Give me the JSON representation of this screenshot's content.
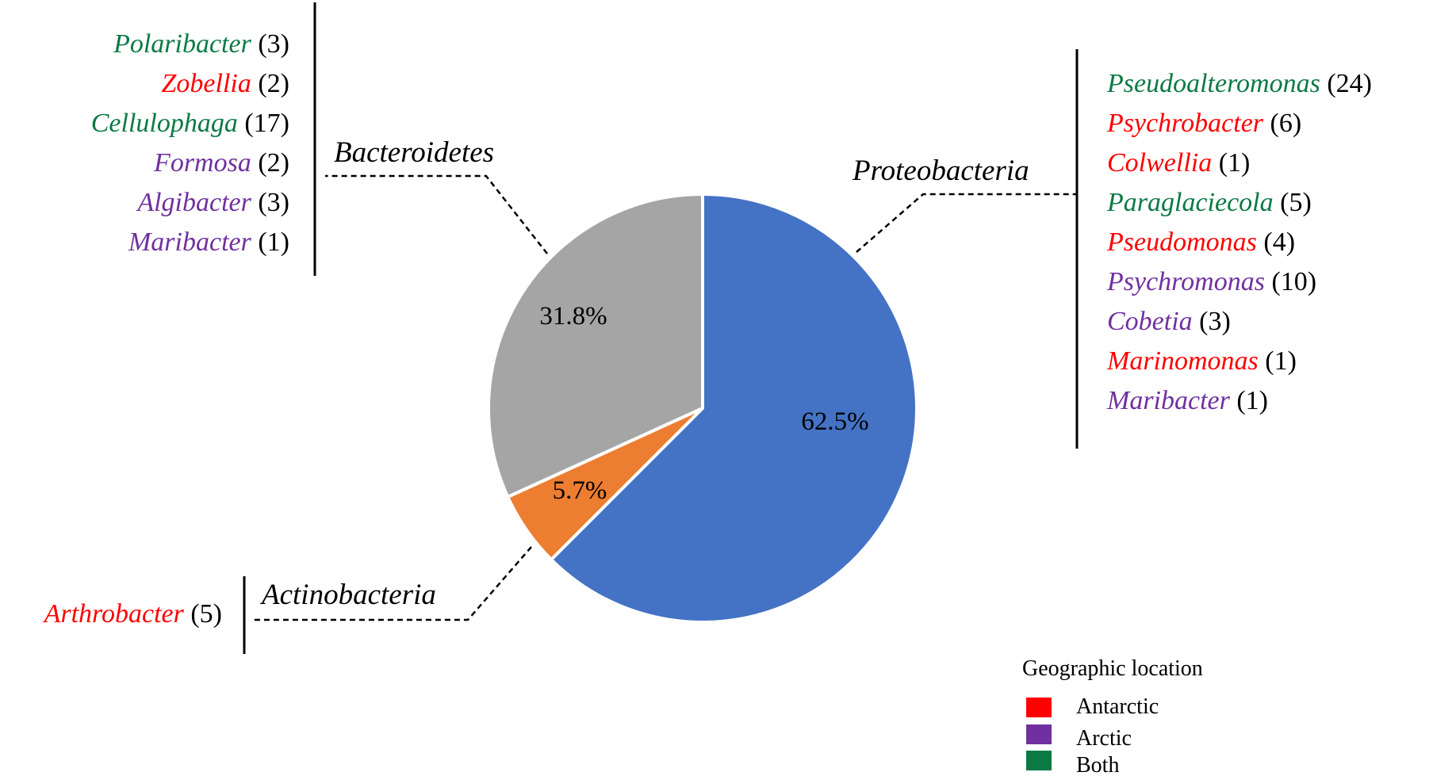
{
  "colors": {
    "antarctic": "#ff0000",
    "arctic": "#7030a0",
    "both": "#0b7a45",
    "proteobacteria_slice": "#4472c4",
    "actinobacteria_slice": "#ed7d31",
    "bacteroidetes_slice": "#a5a5a5"
  },
  "chart_data": {
    "type": "pie",
    "start_angle_deg": 0,
    "direction": "clockwise",
    "slices": [
      {
        "label": "Proteobacteria",
        "value": 62.5,
        "value_label": "62.5%",
        "color": "#4472c4"
      },
      {
        "label": "Actinobacteria",
        "value": 5.7,
        "value_label": "5.7%",
        "color": "#ed7d31"
      },
      {
        "label": "Bacteroidetes",
        "value": 31.8,
        "value_label": "31.8%",
        "color": "#a5a5a5"
      }
    ],
    "groups": {
      "bacteroidetes": {
        "name": "Bacteroidetes",
        "genera": [
          {
            "name": "Polaribacter",
            "count": "(3)",
            "location": "both"
          },
          {
            "name": "Zobellia",
            "count": "(2)",
            "location": "antarctic"
          },
          {
            "name": "Cellulophaga",
            "count": "(17)",
            "location": "both"
          },
          {
            "name": "Formosa",
            "count": "(2)",
            "location": "arctic"
          },
          {
            "name": "Algibacter",
            "count": "(3)",
            "location": "arctic"
          },
          {
            "name": "Maribacter",
            "count": "(1)",
            "location": "arctic"
          }
        ]
      },
      "proteobacteria": {
        "name": "Proteobacteria",
        "genera": [
          {
            "name": "Pseudoalteromonas",
            "count": "(24)",
            "location": "both"
          },
          {
            "name": "Psychrobacter",
            "count": "(6)",
            "location": "antarctic"
          },
          {
            "name": "Colwellia",
            "count": "(1)",
            "location": "antarctic"
          },
          {
            "name": "Paraglaciecola",
            "count": "(5)",
            "location": "both"
          },
          {
            "name": "Pseudomonas",
            "count": "(4)",
            "location": "antarctic"
          },
          {
            "name": "Psychromonas",
            "count": "(10)",
            "location": "arctic"
          },
          {
            "name": "Cobetia",
            "count": "(3)",
            "location": "arctic"
          },
          {
            "name": "Marinomonas",
            "count": "(1)",
            "location": "antarctic"
          },
          {
            "name": "Maribacter",
            "count": "(1)",
            "location": "arctic"
          }
        ]
      },
      "actinobacteria": {
        "name": "Actinobacteria",
        "genera": [
          {
            "name": "Arthrobacter",
            "count": "(5)",
            "location": "antarctic"
          }
        ]
      }
    },
    "legend": {
      "title": "Geographic location",
      "placement": "bottom-right",
      "items": [
        {
          "label": "Antarctic",
          "color": "#ff0000"
        },
        {
          "label": "Arctic",
          "color": "#7030a0"
        },
        {
          "label": "Both",
          "color": "#0b7a45"
        }
      ]
    }
  }
}
